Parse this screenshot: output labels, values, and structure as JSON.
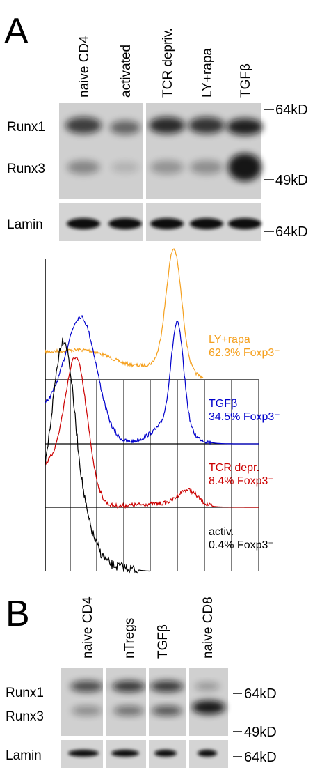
{
  "panel_a": {
    "label": "A",
    "lanes": [
      "naive CD4",
      "activated",
      "TCR depriv.",
      "LY+rapa",
      "TGFβ"
    ],
    "bands": [
      "Runx1",
      "Runx3",
      "Lamin"
    ],
    "markers": [
      "64kD",
      "49kD",
      "64kD"
    ],
    "histograms": [
      {
        "name": "LY+rapa",
        "text": "62.3% Foxp3⁺"
      },
      {
        "name": "TGFβ",
        "text": "34.5% Foxp3⁺"
      },
      {
        "name": "TCR depr.",
        "text": "8.4% Foxp3⁺"
      },
      {
        "name": "activ.",
        "text": "0.4% Foxp3⁺"
      }
    ]
  },
  "panel_b": {
    "label": "B",
    "lanes": [
      "naive CD4",
      "nTregs",
      "TGFβ",
      "naive CD8"
    ],
    "bands": [
      "Runx1",
      "Runx3",
      "Lamin"
    ],
    "markers": [
      "64kD",
      "49kD",
      "64kD"
    ]
  }
}
